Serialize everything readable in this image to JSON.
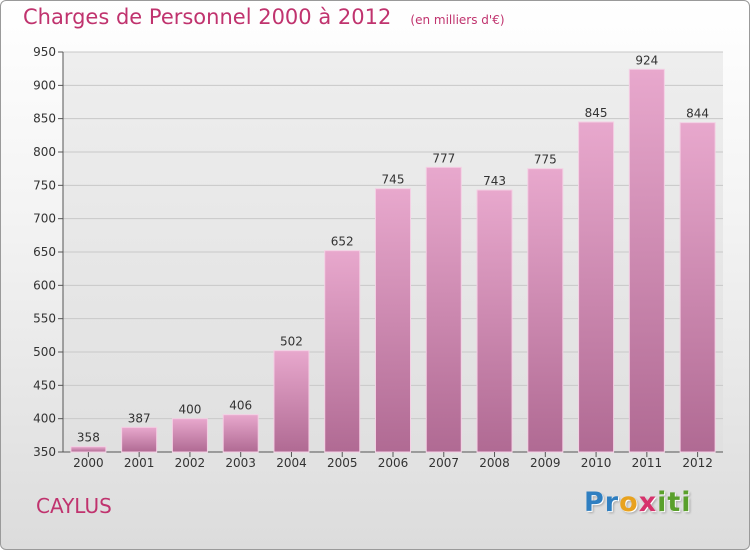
{
  "title": "Charges de Personnel 2000 à 2012",
  "subtitle": "(en milliers d'€)",
  "city": "CAYLUS",
  "logo": {
    "letters": [
      "P",
      "r",
      "o",
      "x",
      "i",
      "t",
      "i"
    ],
    "colors": [
      "#2f7fc1",
      "#2f7fc1",
      "#e8a21e",
      "#d6336c",
      "#5aa02c",
      "#5aa02c",
      "#5aa02c"
    ]
  },
  "colors": {
    "title": "#c0336e",
    "bar_top": "#e8a8cd",
    "bar_bottom": "#b06a93",
    "bar_edge": "#f4cfe4",
    "axis": "#555555",
    "grid": "#c8c8c8"
  },
  "chart_data": {
    "type": "bar",
    "categories": [
      "2000",
      "2001",
      "2002",
      "2003",
      "2004",
      "2005",
      "2006",
      "2007",
      "2008",
      "2009",
      "2010",
      "2011",
      "2012"
    ],
    "values": [
      358,
      387,
      400,
      406,
      502,
      652,
      745,
      777,
      743,
      775,
      845,
      924,
      844
    ],
    "yticks": [
      350,
      400,
      450,
      500,
      550,
      600,
      650,
      700,
      750,
      800,
      850,
      900,
      950
    ],
    "ylim": [
      350,
      950
    ],
    "grid": "horizontal"
  }
}
